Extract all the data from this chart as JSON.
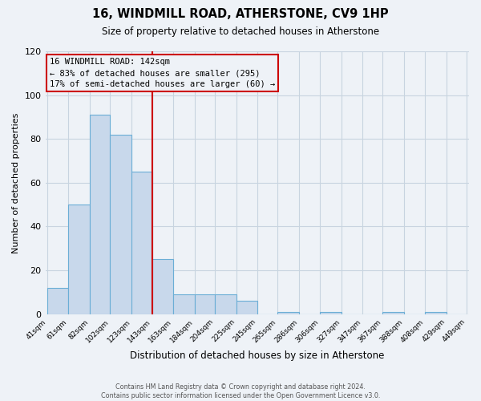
{
  "title": "16, WINDMILL ROAD, ATHERSTONE, CV9 1HP",
  "subtitle": "Size of property relative to detached houses in Atherstone",
  "xlabel": "Distribution of detached houses by size in Atherstone",
  "ylabel": "Number of detached properties",
  "bar_edges": [
    41,
    61,
    82,
    102,
    123,
    143,
    163,
    184,
    204,
    225,
    245,
    265,
    286,
    306,
    327,
    347,
    367,
    388,
    408,
    429,
    449
  ],
  "bar_heights": [
    12,
    50,
    91,
    82,
    65,
    25,
    9,
    9,
    9,
    6,
    0,
    1,
    0,
    1,
    0,
    0,
    1,
    0,
    1,
    0
  ],
  "bar_color": "#c8d8eb",
  "bar_edgecolor": "#6baed6",
  "vline_x": 143,
  "vline_color": "#cc0000",
  "ylim": [
    0,
    120
  ],
  "yticks": [
    0,
    20,
    40,
    60,
    80,
    100,
    120
  ],
  "annotation_line1": "16 WINDMILL ROAD: 142sqm",
  "annotation_line2": "← 83% of detached houses are smaller (295)",
  "annotation_line3": "17% of semi-detached houses are larger (60) →",
  "tick_labels": [
    "41sqm",
    "61sqm",
    "82sqm",
    "102sqm",
    "123sqm",
    "143sqm",
    "163sqm",
    "184sqm",
    "204sqm",
    "225sqm",
    "245sqm",
    "265sqm",
    "286sqm",
    "306sqm",
    "327sqm",
    "347sqm",
    "367sqm",
    "388sqm",
    "408sqm",
    "429sqm",
    "449sqm"
  ],
  "footer_line1": "Contains HM Land Registry data © Crown copyright and database right 2024.",
  "footer_line2": "Contains public sector information licensed under the Open Government Licence v3.0.",
  "background_color": "#eef2f7",
  "grid_color": "#d0dce8"
}
